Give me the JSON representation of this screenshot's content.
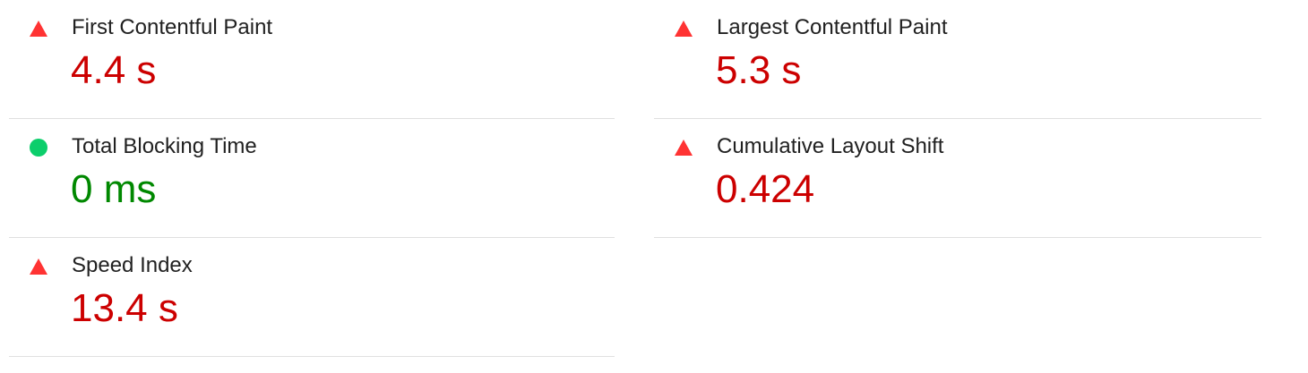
{
  "colors": {
    "fail": "#cc0000",
    "pass": "#008800",
    "fail_icon": "#ff3333",
    "pass_icon": "#0cce6b",
    "divider": "#e0e0e0"
  },
  "metrics": {
    "left": [
      {
        "label": "First Contentful Paint",
        "value": "4.4 s",
        "status": "fail",
        "icon": "triangle-icon"
      },
      {
        "label": "Total Blocking Time",
        "value": "0 ms",
        "status": "pass",
        "icon": "circle-icon"
      },
      {
        "label": "Speed Index",
        "value": "13.4 s",
        "status": "fail",
        "icon": "triangle-icon"
      }
    ],
    "right": [
      {
        "label": "Largest Contentful Paint",
        "value": "5.3 s",
        "status": "fail",
        "icon": "triangle-icon"
      },
      {
        "label": "Cumulative Layout Shift",
        "value": "0.424",
        "status": "fail",
        "icon": "triangle-icon"
      }
    ]
  }
}
